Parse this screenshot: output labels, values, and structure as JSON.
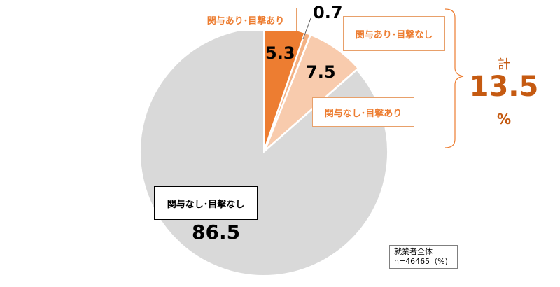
{
  "chart_data": {
    "type": "pie",
    "categories": [
      "関与あり･目撃あり",
      "関与あり･目撃なし",
      "関与なし･目撃あり",
      "関与なし･目撃なし"
    ],
    "values": [
      5.3,
      0.7,
      7.5,
      86.5
    ],
    "value_labels": [
      "5.3",
      "0.7",
      "7.5",
      "86.5"
    ],
    "colors": [
      "#ed7d31",
      "#f4b183",
      "#f8cbad",
      "#d9d9d9"
    ],
    "start_angle_deg": 0,
    "direction": "clockwise",
    "total": {
      "label": "計",
      "value": "13.5",
      "unit": "%"
    },
    "note": {
      "line1": "就業者全体",
      "line2": "n=46465（%)"
    }
  }
}
